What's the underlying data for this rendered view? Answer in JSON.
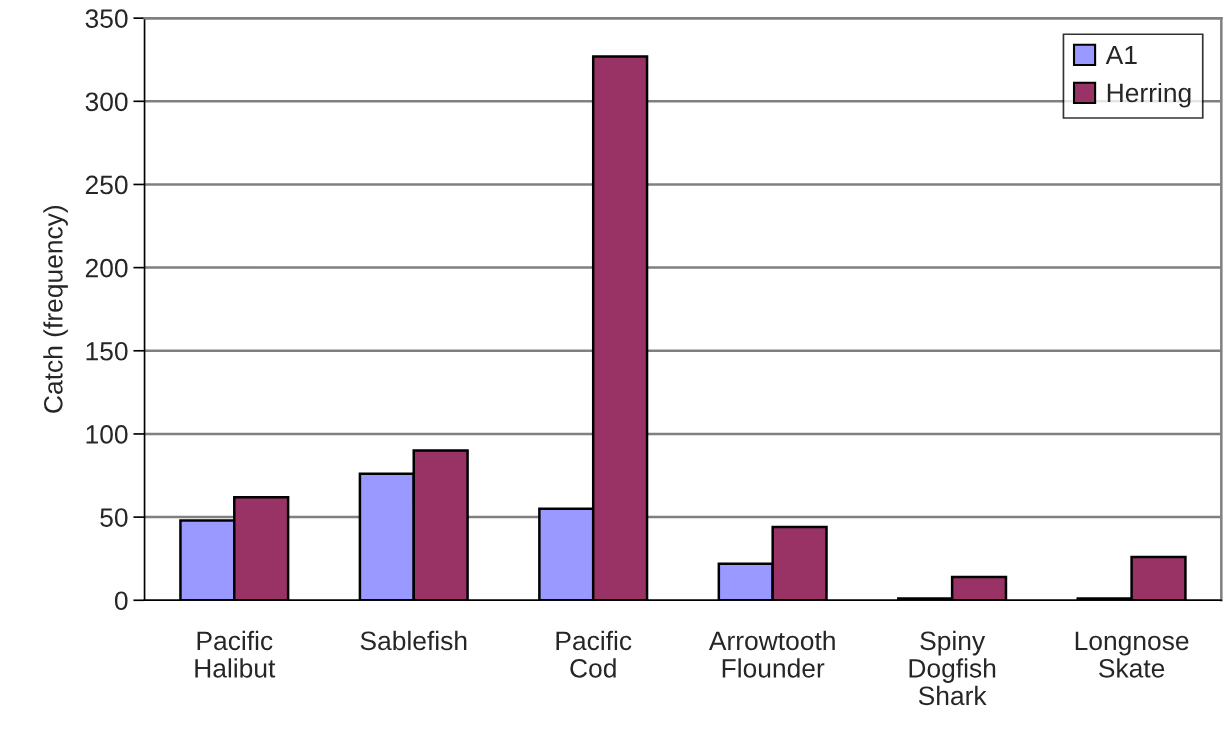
{
  "chart_data": {
    "type": "bar",
    "ylabel": "Catch (frequency)",
    "categories": [
      "Pacific\nHalibut",
      "Sablefish",
      "Pacific\nCod",
      "Arrowtooth\nFlounder",
      "Spiny\nDogfish\nShark",
      "Longnose\nSkate"
    ],
    "series": [
      {
        "name": "A1",
        "color": "#9999ff",
        "values": [
          48,
          76,
          55,
          22,
          1,
          1
        ]
      },
      {
        "name": "Herring",
        "color": "#993366",
        "values": [
          62,
          90,
          327,
          44,
          14,
          26
        ]
      }
    ],
    "ylim": [
      0,
      350
    ],
    "yticks": [
      0,
      50,
      100,
      150,
      200,
      250,
      300,
      350
    ],
    "grid": "y",
    "legend": "top right"
  }
}
